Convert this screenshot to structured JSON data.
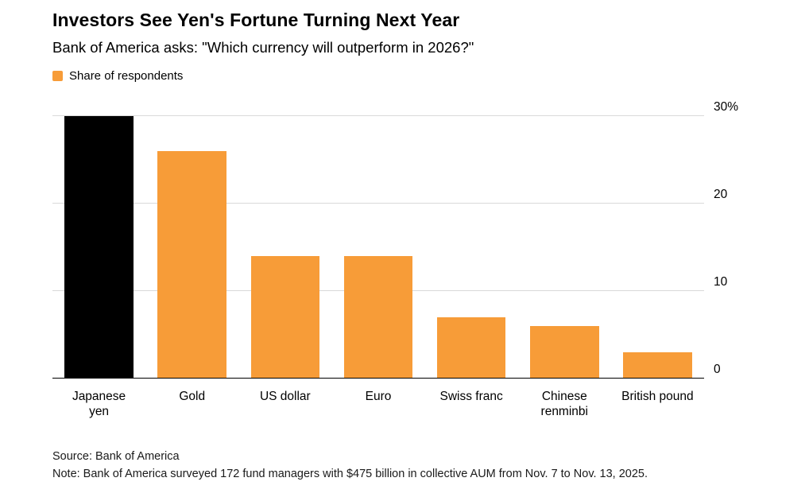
{
  "header": {
    "title": "Investors See Yen's Fortune Turning Next Year",
    "subtitle": "Bank of America asks: \"Which currency will outperform in 2026?\""
  },
  "legend": {
    "label": "Share of respondents",
    "swatch_color": "#F79C38"
  },
  "chart_data": {
    "type": "bar",
    "title": "Investors See Yen's Fortune Turning Next Year",
    "subtitle": "Bank of America asks: \"Which currency will outperform in 2026?\"",
    "categories": [
      "Japanese yen",
      "Gold",
      "US dollar",
      "Euro",
      "Swiss franc",
      "Chinese renminbi",
      "British pound"
    ],
    "values": [
      30,
      26,
      14,
      14,
      7,
      6,
      3
    ],
    "series_name": "Share of respondents",
    "bar_colors": [
      "#000000",
      "#F79C38",
      "#F79C38",
      "#F79C38",
      "#F79C38",
      "#F79C38",
      "#F79C38"
    ],
    "xlabel": "",
    "ylabel": "",
    "ylim": [
      0,
      30
    ],
    "yticks": [
      {
        "value": 30,
        "label": "30%"
      },
      {
        "value": 20,
        "label": "20"
      },
      {
        "value": 10,
        "label": "10"
      },
      {
        "value": 0,
        "label": "0"
      }
    ],
    "grid": true,
    "gridline_color": "#d9d9d9",
    "baseline_color": "#000000",
    "legend_position": "top-left",
    "yaxis_side": "right"
  },
  "footer": {
    "source": "Source: Bank of America",
    "note": "Note: Bank of America surveyed 172 fund managers with $475 billion in collective AUM from Nov. 7 to Nov. 13, 2025."
  }
}
